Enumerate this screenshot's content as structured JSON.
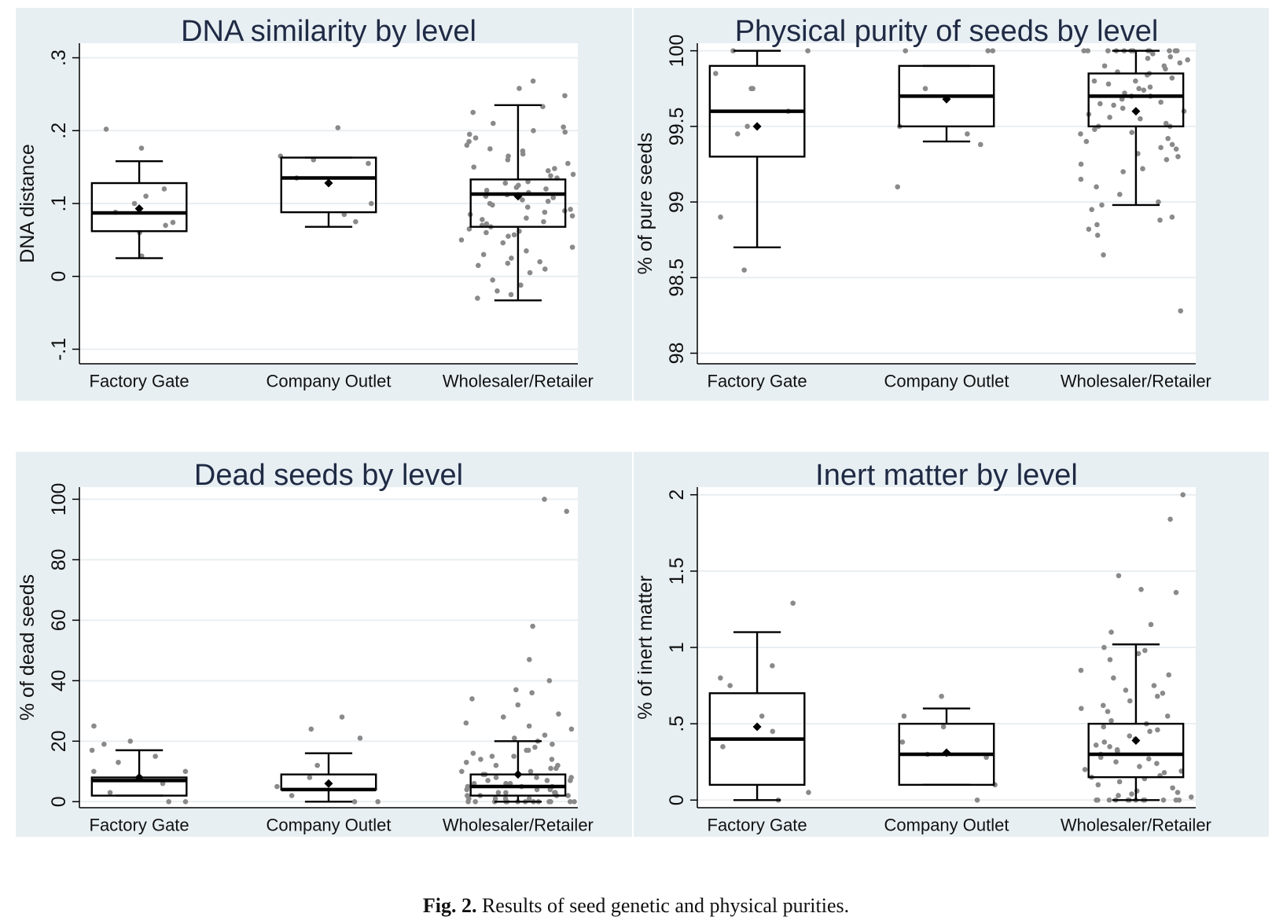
{
  "caption": {
    "label": "Fig. 2.",
    "text": "Results of seed genetic and physical purities."
  },
  "colors": {
    "panel_bg": "#e8eff3",
    "plot_bg": "#ffffff",
    "grid": "#e9eef1",
    "box": "#000000",
    "points": "#8a8a8a"
  },
  "chart_data": [
    {
      "type": "box",
      "title": "DNA similarity by level",
      "ylabel": "DNA distance",
      "ylim": [
        -0.12,
        0.32
      ],
      "yticks": [
        -0.1,
        0,
        0.1,
        0.2,
        0.3
      ],
      "ytick_labels": [
        "-.1",
        "0",
        ".1",
        ".2",
        ".3"
      ],
      "categories": [
        "Factory Gate",
        "Company Outlet",
        "Wholesaler/Retailer"
      ],
      "boxes": [
        {
          "whisker_low": 0.025,
          "q1": 0.062,
          "median": 0.087,
          "q3": 0.128,
          "whisker_high": 0.158,
          "mean": 0.093
        },
        {
          "whisker_low": 0.068,
          "q1": 0.088,
          "median": 0.135,
          "q3": 0.163,
          "whisker_high": 0.163,
          "mean": 0.128
        },
        {
          "whisker_low": -0.033,
          "q1": 0.068,
          "median": 0.113,
          "q3": 0.133,
          "whisker_high": 0.235,
          "mean": 0.11
        }
      ],
      "points": [
        [
          0.202,
          0.12,
          0.11,
          0.1,
          0.088,
          0.074,
          0.07,
          0.06,
          0.028,
          0.176
        ],
        [
          0.204,
          0.165,
          0.16,
          0.155,
          0.135,
          0.1,
          0.085,
          0.075
        ],
        [
          0.268,
          0.258,
          0.248,
          0.233,
          0.225,
          0.21,
          0.205,
          0.2,
          0.198,
          0.195,
          0.19,
          0.185,
          0.18,
          0.175,
          0.172,
          0.168,
          0.165,
          0.16,
          0.155,
          0.15,
          0.148,
          0.145,
          0.14,
          0.138,
          0.135,
          0.13,
          0.128,
          0.125,
          0.122,
          0.12,
          0.118,
          0.115,
          0.112,
          0.11,
          0.108,
          0.105,
          0.103,
          0.1,
          0.098,
          0.095,
          0.092,
          0.09,
          0.088,
          0.085,
          0.083,
          0.08,
          0.078,
          0.075,
          0.072,
          0.07,
          0.068,
          0.065,
          0.062,
          0.06,
          0.057,
          0.055,
          0.05,
          0.046,
          0.04,
          0.035,
          0.03,
          0.025,
          0.02,
          0.018,
          0.015,
          0.01,
          0.005,
          -0.005,
          -0.012,
          -0.02,
          -0.025,
          -0.03
        ]
      ]
    },
    {
      "type": "box",
      "title": "Physical purity of seeds by level",
      "ylabel": "% of pure seeds",
      "ylim": [
        97.93,
        100.05
      ],
      "yticks": [
        98,
        98.5,
        99,
        99.5,
        100
      ],
      "ytick_labels": [
        "98",
        "98.5",
        "99",
        "99.5",
        "100"
      ],
      "categories": [
        "Factory Gate",
        "Company Outlet",
        "Wholesaler/Retailer"
      ],
      "boxes": [
        {
          "whisker_low": 98.7,
          "q1": 99.3,
          "median": 99.6,
          "q3": 99.9,
          "whisker_high": 100,
          "mean": 99.5
        },
        {
          "whisker_low": 99.4,
          "q1": 99.5,
          "median": 99.7,
          "q3": 99.9,
          "whisker_high": 99.9,
          "mean": 99.68
        },
        {
          "whisker_low": 98.98,
          "q1": 99.5,
          "median": 99.7,
          "q3": 99.85,
          "whisker_high": 100,
          "mean": 99.6
        }
      ],
      "points": [
        [
          100,
          100,
          99.85,
          99.75,
          99.6,
          99.5,
          99.45,
          98.9,
          98.55,
          99.75
        ],
        [
          100,
          100,
          100,
          99.75,
          99.5,
          99.45,
          99.38,
          99.1
        ],
        [
          100,
          100,
          100,
          100,
          100,
          100,
          100,
          100,
          100,
          100,
          100,
          100,
          99.98,
          99.96,
          99.95,
          99.94,
          99.92,
          99.9,
          99.9,
          99.88,
          99.86,
          99.85,
          99.84,
          99.82,
          99.8,
          99.8,
          99.78,
          99.76,
          99.75,
          99.74,
          99.72,
          99.7,
          99.7,
          99.68,
          99.66,
          99.65,
          99.64,
          99.62,
          99.6,
          99.58,
          99.56,
          99.55,
          99.52,
          99.5,
          99.5,
          99.48,
          99.46,
          99.45,
          99.42,
          99.4,
          99.38,
          99.36,
          99.35,
          99.32,
          99.3,
          99.28,
          99.25,
          99.22,
          99.2,
          99.15,
          99.1,
          99.05,
          99,
          98.98,
          98.95,
          98.9,
          98.88,
          98.85,
          98.82,
          98.78,
          98.65,
          98.28
        ]
      ]
    },
    {
      "type": "box",
      "title": "Dead seeds by level",
      "ylabel": "% of dead seeds",
      "ylim": [
        -2,
        104
      ],
      "yticks": [
        0,
        20,
        40,
        60,
        80,
        100
      ],
      "ytick_labels": [
        "0",
        "20",
        "40",
        "60",
        "80",
        "100"
      ],
      "categories": [
        "Factory Gate",
        "Company Outlet",
        "Wholesaler/Retailer"
      ],
      "boxes": [
        {
          "whisker_low": 2,
          "q1": 2,
          "median": 7,
          "q3": 8,
          "whisker_high": 17,
          "mean": 8
        },
        {
          "whisker_low": 0,
          "q1": 4,
          "median": 4,
          "q3": 9,
          "whisker_high": 16,
          "mean": 6
        },
        {
          "whisker_low": 0,
          "q1": 2,
          "median": 5,
          "q3": 9,
          "whisker_high": 20,
          "mean": 9
        }
      ],
      "points": [
        [
          17,
          15,
          13,
          19,
          10,
          6,
          3,
          0,
          0,
          25,
          20,
          10
        ],
        [
          28,
          24,
          21,
          12,
          8,
          5,
          2,
          0,
          0
        ],
        [
          100,
          96,
          58,
          47,
          40,
          37,
          36,
          34,
          32,
          29,
          28,
          26,
          25,
          24,
          22,
          21,
          20,
          19,
          18,
          17,
          17,
          16,
          15,
          15,
          14,
          14,
          13,
          12,
          12,
          11,
          11,
          10,
          10,
          9,
          9,
          8,
          8,
          8,
          7,
          7,
          7,
          6,
          6,
          6,
          5,
          5,
          5,
          4,
          4,
          4,
          3,
          3,
          3,
          3,
          2,
          2,
          2,
          2,
          1,
          1,
          1,
          1,
          0,
          0,
          0,
          0,
          0,
          0,
          0,
          0,
          0,
          0,
          0,
          0,
          0,
          0
        ]
      ]
    },
    {
      "type": "box",
      "title": "Inert matter by level",
      "ylabel": "% of inert matter",
      "ylim": [
        -0.05,
        2.05
      ],
      "yticks": [
        0,
        0.5,
        1,
        1.5,
        2
      ],
      "ytick_labels": [
        "0",
        ".5",
        "1",
        "1.5",
        "2"
      ],
      "categories": [
        "Factory Gate",
        "Company Outlet",
        "Wholesaler/Retailer"
      ],
      "boxes": [
        {
          "whisker_low": 0,
          "q1": 0.1,
          "median": 0.4,
          "q3": 0.7,
          "whisker_high": 1.1,
          "mean": 0.48
        },
        {
          "whisker_low": 0.1,
          "q1": 0.1,
          "median": 0.3,
          "q3": 0.5,
          "whisker_high": 0.6,
          "mean": 0.31
        },
        {
          "whisker_low": 0,
          "q1": 0.15,
          "median": 0.3,
          "q3": 0.5,
          "whisker_high": 1.02,
          "mean": 0.39
        }
      ],
      "points": [
        [
          0.88,
          0.8,
          0.35,
          0.05,
          0,
          1.29,
          0.75,
          0.55,
          0.45
        ],
        [
          0.68,
          0.55,
          0.48,
          0.38,
          0.3,
          0.28,
          0.1,
          0
        ],
        [
          2,
          1.84,
          1.47,
          1.38,
          1.36,
          1.15,
          1.1,
          1.0,
          0.98,
          0.96,
          0.92,
          0.85,
          0.82,
          0.8,
          0.75,
          0.72,
          0.7,
          0.68,
          0.65,
          0.62,
          0.6,
          0.58,
          0.55,
          0.52,
          0.5,
          0.48,
          0.46,
          0.45,
          0.42,
          0.4,
          0.38,
          0.36,
          0.35,
          0.33,
          0.32,
          0.3,
          0.28,
          0.27,
          0.25,
          0.24,
          0.22,
          0.2,
          0.19,
          0.18,
          0.16,
          0.15,
          0.14,
          0.12,
          0.1,
          0.08,
          0.06,
          0.05,
          0.04,
          0.03,
          0.02,
          0,
          0,
          0,
          0,
          0,
          0,
          0,
          0,
          0,
          0,
          0,
          0
        ]
      ]
    }
  ]
}
